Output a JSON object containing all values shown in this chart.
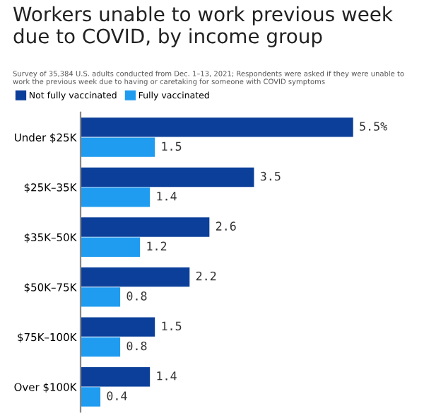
{
  "chart_data": {
    "type": "bar",
    "orientation": "horizontal",
    "title": "Workers unable to work previous week due to COVID, by income group",
    "subtitle": "Survey of 35,384 U.S. adults conducted from Dec. 1–13, 2021; Respondents were asked if they were unable to work the previous week due to having or caretaking for someone with COVID symptoms",
    "categories": [
      "Under $25K",
      "$25K–35K",
      "$35K–50K",
      "$50K–75K",
      "$75K–100K",
      "Over $100K"
    ],
    "series": [
      {
        "name": "Not fully vaccinated",
        "color": "#0b3f9a",
        "values": [
          5.5,
          3.5,
          2.6,
          2.2,
          1.5,
          1.4
        ],
        "value_labels": [
          "5.5%",
          "3.5",
          "2.6",
          "2.2",
          "1.5",
          "1.4"
        ]
      },
      {
        "name": "Fully vaccinated",
        "color": "#1f9cf0",
        "values": [
          1.5,
          1.4,
          1.2,
          0.8,
          0.8,
          0.4
        ],
        "value_labels": [
          "1.5",
          "1.4",
          "1.2",
          "0.8",
          "0.8",
          "0.4"
        ]
      }
    ],
    "legend": "top left",
    "grid": false
  }
}
